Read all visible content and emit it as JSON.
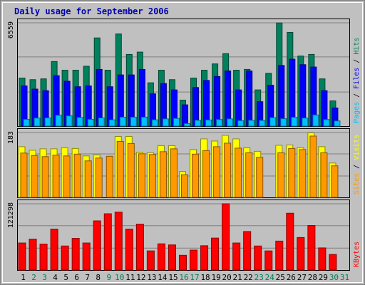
{
  "chart_data": {
    "type": "bar",
    "title": "Daily usage for September 2006",
    "colors": {
      "background": "#c0c0c0",
      "plot": "#c0c0c0",
      "grid": "#808080",
      "title": "#0000b0",
      "hits": "#00805c",
      "files": "#0000ff",
      "pages": "#00c0ff",
      "visits": "#ffff00",
      "sites": "#ff9900",
      "kbytes": "#ff0000",
      "weekday": "#000000",
      "weekend": "#00805c"
    },
    "days": [
      "1",
      "2",
      "3",
      "4",
      "5",
      "6",
      "7",
      "8",
      "9",
      "10",
      "11",
      "12",
      "13",
      "14",
      "15",
      "16",
      "17",
      "18",
      "19",
      "20",
      "21",
      "22",
      "23",
      "24",
      "25",
      "26",
      "27",
      "28",
      "29",
      "30",
      "31"
    ],
    "weekend_days": [
      "2",
      "3",
      "9",
      "10",
      "16",
      "17",
      "23",
      "24",
      "30",
      "31"
    ],
    "panels": [
      {
        "ymax_label": "6559",
        "ymax": 6559,
        "legend": [
          {
            "label": "Pages",
            "color": "#00c0ff"
          },
          {
            "label": "Files",
            "color": "#0000ff"
          },
          {
            "label": "Hits",
            "color": "#00805c"
          }
        ],
        "series": [
          {
            "name": "Hits",
            "color": "#00805c",
            "values": [
              3050,
              2950,
              3000,
              4100,
              3550,
              3550,
              3800,
              5600,
              3550,
              5850,
              4550,
              4700,
              2750,
              3550,
              2950,
              1650,
              3050,
              3550,
              3950,
              4600,
              3550,
              3600,
              2300,
              3350,
              6550,
              5950,
              4450,
              4550,
              3000,
              1600,
              0
            ]
          },
          {
            "name": "Files",
            "color": "#0000ff",
            "values": [
              2550,
              2350,
              2250,
              3200,
              2850,
              2500,
              2550,
              3600,
              2500,
              3250,
              3250,
              3600,
              2050,
              2700,
              2300,
              1350,
              2450,
              2900,
              3150,
              3500,
              2300,
              3500,
              1550,
              2600,
              3850,
              4250,
              3900,
              3750,
              2250,
              1150,
              0
            ]
          },
          {
            "name": "Pages",
            "color": "#00c0ff",
            "values": [
              430,
              510,
              520,
              690,
              650,
              550,
              430,
              520,
              400,
              570,
              570,
              570,
              400,
              460,
              490,
              160,
              370,
              390,
              420,
              460,
              350,
              370,
              360,
              540,
              470,
              560,
              510,
              710,
              420,
              330,
              0
            ]
          }
        ]
      },
      {
        "ymax_label": "183",
        "ymax": 183,
        "legend": [
          {
            "label": "Sites",
            "color": "#ff9900"
          },
          {
            "label": "Visits",
            "color": "#ffff00"
          }
        ],
        "series": [
          {
            "name": "Visits",
            "color": "#ffff00",
            "values": [
              143,
              133,
              137,
              137,
              140,
              138,
              117,
              120,
              0,
              172,
              172,
              127,
              126,
              146,
              146,
              73,
              135,
              165,
              159,
              175,
              165,
              140,
              130,
              0,
              147,
              148,
              140,
              182,
              143,
              97,
              0
            ],
            "note_zero_days": []
          },
          {
            "name": "Sites",
            "color": "#ff9900",
            "values": [
              125,
              118,
              115,
              119,
              117,
              122,
              103,
              111,
              116,
              158,
              152,
              123,
              121,
              129,
              137,
              64,
              122,
              132,
              143,
              153,
              139,
              126,
              113,
              0,
              126,
              138,
              135,
              173,
              126,
              89,
              0
            ]
          }
        ]
      },
      {
        "ymax_label": "121298",
        "ymax": 121298,
        "legend": [
          {
            "label": "KBytes",
            "color": "#ff0000"
          }
        ],
        "series": [
          {
            "name": "KBytes",
            "color": "#ff0000",
            "values": [
              49500,
              56500,
              47500,
              75000,
              44000,
              58000,
              49500,
              90000,
              103000,
              106000,
              75000,
              84000,
              35000,
              48000,
              46000,
              27000,
              36500,
              44500,
              58500,
              121298,
              49500,
              70500,
              44000,
              35000,
              53000,
              104000,
              59500,
              81500,
              40500,
              28500,
              0
            ]
          }
        ]
      }
    ]
  }
}
